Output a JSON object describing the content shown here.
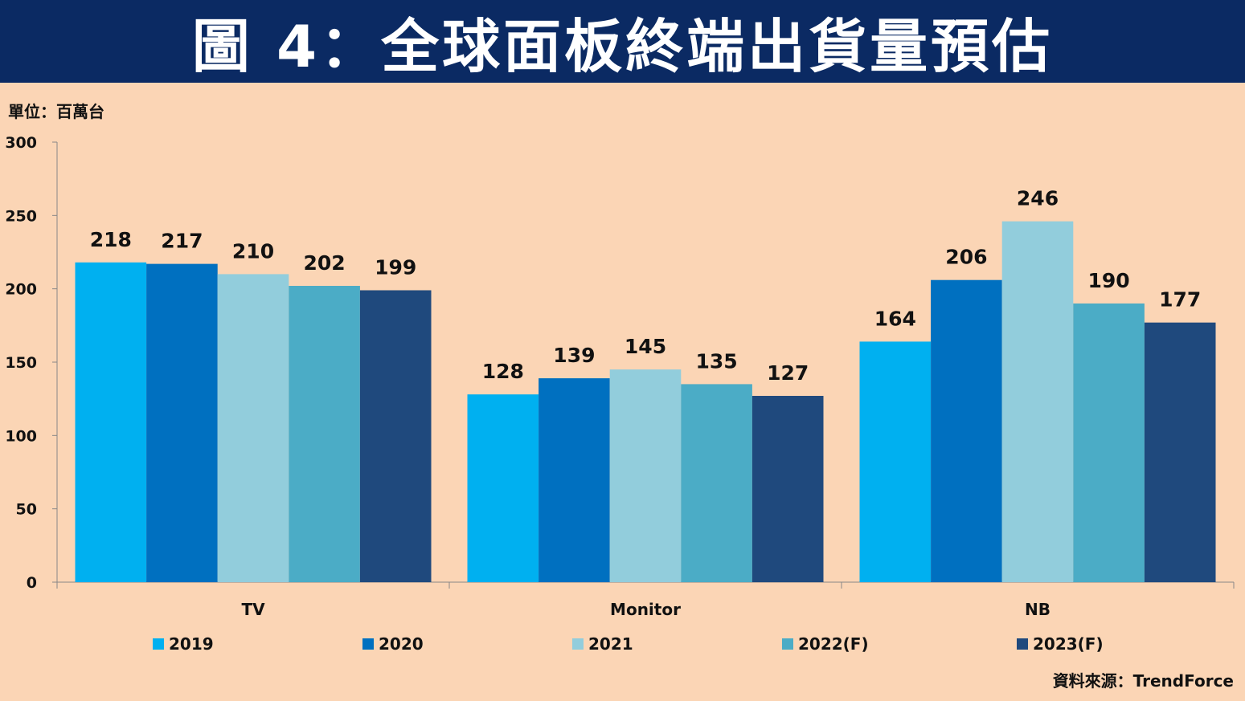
{
  "title": "圖 4：全球面板終端出貨量預估",
  "unit_label": "單位：百萬台",
  "source_label": "資料來源：TrendForce",
  "chart_data": {
    "type": "bar",
    "categories": [
      "TV",
      "Monitor",
      "NB"
    ],
    "ylim": [
      0,
      300
    ],
    "yticks": [
      0,
      50,
      100,
      150,
      200,
      250,
      300
    ],
    "grid": false,
    "legend_position": "bottom",
    "series": [
      {
        "name": "2019",
        "color": "#00b0f0",
        "values": [
          218,
          128,
          164
        ]
      },
      {
        "name": "2020",
        "color": "#0070c0",
        "values": [
          217,
          139,
          206
        ]
      },
      {
        "name": "2021",
        "color": "#92cddc",
        "values": [
          210,
          145,
          246
        ]
      },
      {
        "name": "2022(F)",
        "color": "#4bacc6",
        "values": [
          202,
          135,
          190
        ]
      },
      {
        "name": "2023(F)",
        "color": "#1f497d",
        "values": [
          199,
          127,
          177
        ]
      }
    ]
  }
}
